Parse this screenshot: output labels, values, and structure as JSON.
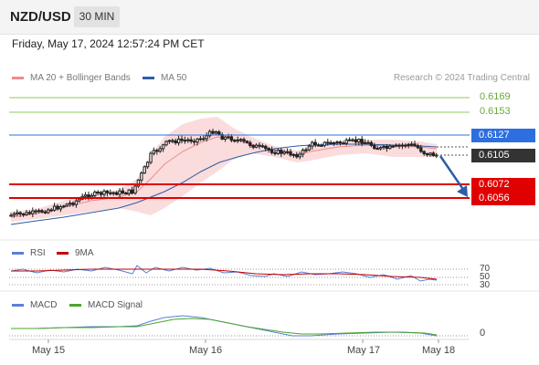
{
  "header": {
    "symbol": "NZD/USD",
    "timeframe": "30 MIN"
  },
  "datetime": "Friday, May 17, 2024 12:57:24 PM CET",
  "legend": {
    "ma20": {
      "label": "MA 20 + Bollinger Bands",
      "color": "#f08a8a"
    },
    "ma50": {
      "label": "MA 50",
      "color": "#2e5da8"
    }
  },
  "credit": "Research © 2024 Trading Central",
  "levels": {
    "r2": "0.6169",
    "r1": "0.6153",
    "pivot": "0.6127",
    "last": "0.6105",
    "s1": "0.6072",
    "s2": "0.6056"
  },
  "rsi": {
    "label": "RSI",
    "ma_label": "9MA",
    "ticks": [
      "70",
      "50",
      "30"
    ]
  },
  "macd": {
    "label": "MACD",
    "signal_label": "MACD Signal",
    "zero": "0"
  },
  "x_axis": [
    "May 15",
    "May 16",
    "May 17",
    "May 18"
  ],
  "colors": {
    "resistance": "#8fce5a",
    "pivot": "#2d6fe0",
    "support": "#e00000",
    "last": "#333333",
    "arrow": "#2e5da8"
  }
}
